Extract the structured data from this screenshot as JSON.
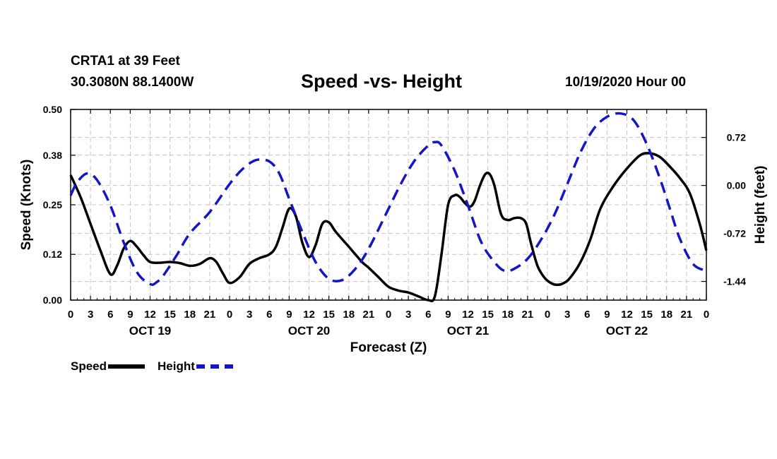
{
  "header": {
    "station": "CRTA1 at 39 Feet",
    "coords": "30.3080N 88.1400W",
    "title": "Speed -vs- Height",
    "timestamp": "10/19/2020 Hour 00"
  },
  "legend": {
    "speed_label": "Speed",
    "height_label": "Height"
  },
  "chart_data": {
    "type": "line",
    "title": "Speed -vs- Height",
    "xlabel": "Forecast (Z)",
    "ylabel": "Speed (Knots)",
    "y2label": "Height (feet)",
    "xlim": [
      0,
      96
    ],
    "ylim": [
      0,
      0.5
    ],
    "y2lim": [
      -1.72,
      1.14
    ],
    "grid": true,
    "legend_position": "bottom-left",
    "x_tick_labels": [
      "0",
      "3",
      "6",
      "9",
      "12",
      "15",
      "18",
      "21",
      "0",
      "3",
      "6",
      "9",
      "12",
      "15",
      "18",
      "21",
      "0",
      "3",
      "6",
      "9",
      "12",
      "15",
      "18",
      "21",
      "0",
      "3",
      "6",
      "9",
      "12",
      "15",
      "18",
      "21",
      "0"
    ],
    "y_ticks": [
      0.0,
      0.12,
      0.25,
      0.38,
      0.5
    ],
    "y_tick_labels": [
      "0.00",
      "0.12",
      "0.25",
      "0.38",
      "0.50"
    ],
    "y2_ticks": [
      0.72,
      0.0,
      -0.72,
      -1.44
    ],
    "y2_tick_labels": [
      "0.72",
      "0.00",
      "-0.72",
      "-1.44"
    ],
    "day_labels": [
      {
        "label": "OCT 19",
        "x": 12
      },
      {
        "label": "OCT 20",
        "x": 36
      },
      {
        "label": "OCT 21",
        "x": 60
      },
      {
        "label": "OCT 22",
        "x": 84
      }
    ],
    "colors": {
      "speed": "#000000",
      "height": "#1515c8"
    },
    "series": [
      {
        "name": "Speed",
        "axis": "left",
        "x": [
          0,
          1.5,
          3,
          4.5,
          6,
          7,
          8,
          9,
          10,
          11,
          12,
          13.5,
          15,
          16.5,
          18,
          19.5,
          21,
          22,
          23,
          24,
          25.5,
          27,
          28.5,
          30,
          31,
          32,
          33,
          34,
          35,
          36,
          37,
          38,
          39,
          40,
          42,
          44,
          45,
          46.5,
          48,
          49.5,
          51,
          52.5,
          54,
          55,
          56,
          57,
          58,
          58.8,
          59.5,
          60.3,
          61,
          61.8,
          62.6,
          63.3,
          64,
          65,
          66,
          67,
          68,
          68.8,
          69.5,
          70.5,
          71.5,
          72.5,
          73.5,
          74.5,
          75.5,
          77,
          78.5,
          80,
          82,
          84,
          86,
          87.5,
          89,
          90.5,
          92,
          93.5,
          95,
          96
        ],
        "values": [
          0.328,
          0.27,
          0.2,
          0.13,
          0.068,
          0.09,
          0.135,
          0.155,
          0.14,
          0.118,
          0.1,
          0.098,
          0.1,
          0.097,
          0.09,
          0.095,
          0.11,
          0.1,
          0.07,
          0.045,
          0.06,
          0.095,
          0.11,
          0.12,
          0.14,
          0.19,
          0.24,
          0.22,
          0.15,
          0.113,
          0.145,
          0.2,
          0.204,
          0.18,
          0.14,
          0.1,
          0.085,
          0.06,
          0.035,
          0.025,
          0.02,
          0.01,
          0.0,
          0.01,
          0.12,
          0.25,
          0.275,
          0.27,
          0.255,
          0.245,
          0.26,
          0.3,
          0.33,
          0.33,
          0.3,
          0.225,
          0.21,
          0.215,
          0.215,
          0.2,
          0.15,
          0.09,
          0.06,
          0.045,
          0.04,
          0.045,
          0.06,
          0.1,
          0.16,
          0.24,
          0.3,
          0.345,
          0.38,
          0.385,
          0.375,
          0.35,
          0.32,
          0.28,
          0.2,
          0.13
        ]
      },
      {
        "name": "Height",
        "axis": "right",
        "x": [
          0,
          1,
          2.5,
          4,
          6,
          8,
          10,
          12,
          13,
          14,
          16,
          18,
          21,
          24,
          26,
          28,
          30,
          31.5,
          33,
          35,
          37,
          39,
          41,
          43,
          45,
          48,
          50,
          52,
          54,
          55,
          56,
          58,
          60,
          62,
          64,
          65.5,
          67,
          69,
          71,
          73,
          75,
          77,
          79,
          81,
          83,
          85,
          87,
          89,
          90.5,
          92,
          94,
          96
        ],
        "values": [
          -0.15,
          0.05,
          0.18,
          0.08,
          -0.3,
          -0.85,
          -1.3,
          -1.48,
          -1.45,
          -1.35,
          -1.05,
          -0.72,
          -0.4,
          0.02,
          0.25,
          0.38,
          0.36,
          0.18,
          -0.2,
          -0.7,
          -1.15,
          -1.4,
          -1.42,
          -1.25,
          -0.95,
          -0.35,
          0.05,
          0.38,
          0.6,
          0.65,
          0.6,
          0.22,
          -0.3,
          -0.85,
          -1.15,
          -1.28,
          -1.25,
          -1.1,
          -0.82,
          -0.45,
          0.02,
          0.5,
          0.85,
          1.03,
          1.08,
          0.98,
          0.62,
          0.1,
          -0.35,
          -0.8,
          -1.18,
          -1.28
        ]
      }
    ]
  }
}
